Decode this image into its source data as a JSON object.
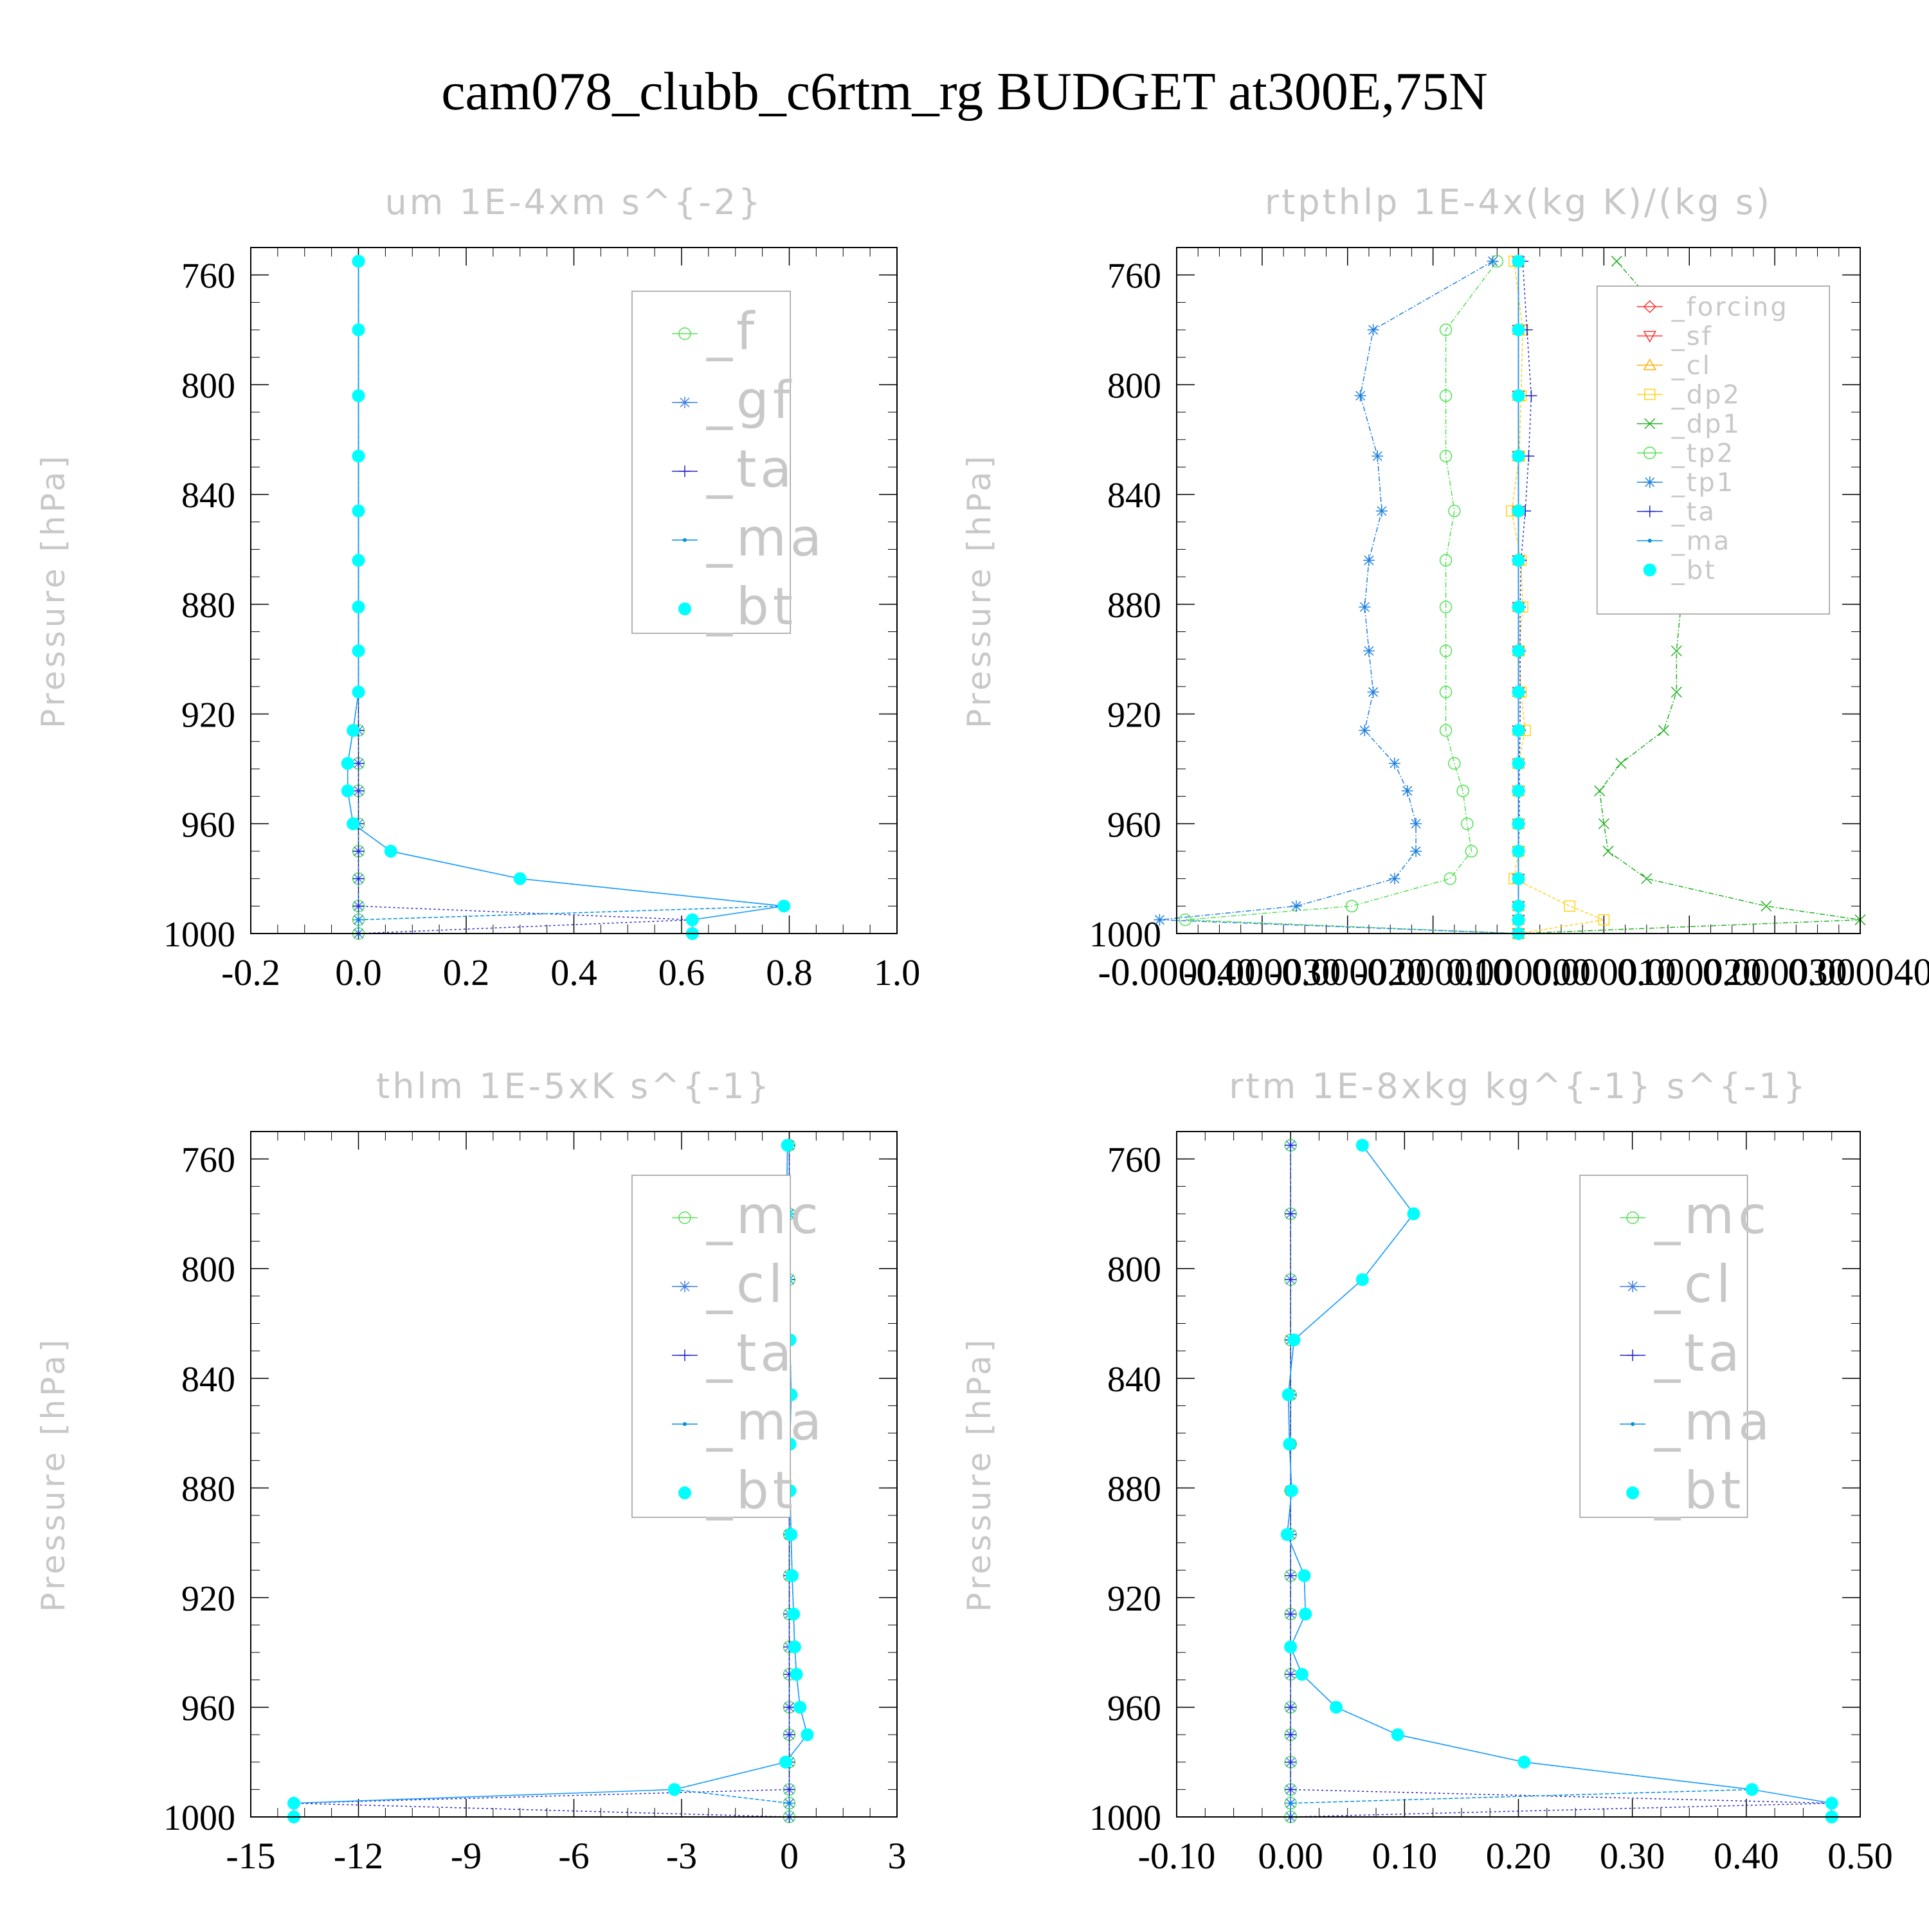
{
  "figure": {
    "title": "cam078_clubb_c6rtm_rg  BUDGET at300E,75N"
  },
  "colors": {
    "axis": "#000000",
    "faint_text": "#c8c8c8",
    "legend_border": "#9a9a9a",
    "bt": "#00ffff",
    "bt_line": "#1a9cff",
    "forcing": "#ff3030",
    "sf": "#ff3030",
    "cl_rtp": "#ffb000",
    "dp2": "#ffd21a",
    "dp1": "#20b020",
    "tp2": "#50e050",
    "tp1": "#2080e0",
    "ta": "#2020c8",
    "ma": "#0090e0",
    "f": "#50e050",
    "gf": "#4080e0",
    "mc": "#50e050",
    "cl": "#4080e0"
  },
  "chart_data": [
    {
      "id": "um",
      "type": "line",
      "title": "um   1E-4xm s^{-2}",
      "ylabel": "Pressure [hPa]",
      "xlabel": "",
      "xlim": [
        -0.2,
        1.0
      ],
      "ylim": [
        1000,
        750
      ],
      "xticks": [
        "-0.2",
        "0.0",
        "0.2",
        "0.4",
        "0.6",
        "0.8",
        "1.0"
      ],
      "xtick_values": [
        -0.2,
        0.0,
        0.2,
        0.4,
        0.6,
        0.8,
        1.0
      ],
      "yticks": [
        "760",
        "800",
        "840",
        "880",
        "920",
        "960",
        "1000"
      ],
      "legend_position": "top-right",
      "levels": [
        755,
        780,
        804,
        826,
        846,
        864,
        881,
        897,
        912,
        926,
        938,
        948,
        960,
        970,
        980,
        990,
        995,
        1000
      ],
      "series": [
        {
          "name": "_f",
          "color_key": "f",
          "marker": "circle",
          "dash": "6 4",
          "values": [
            0,
            0,
            0,
            0,
            0,
            0,
            0,
            0,
            0,
            0,
            0,
            0,
            0,
            0,
            0,
            0,
            0,
            0
          ]
        },
        {
          "name": "_gf",
          "color_key": "gf",
          "marker": "asterisk",
          "dash": "6 4",
          "values": [
            0,
            0,
            0,
            0,
            0,
            0,
            0,
            0,
            0,
            0,
            0,
            0,
            0,
            0,
            0,
            0,
            0,
            0
          ]
        },
        {
          "name": "_ta",
          "color_key": "ta",
          "marker": "plus",
          "dash": "3 4",
          "values": [
            0,
            0,
            0,
            0,
            0,
            0,
            0,
            0,
            0,
            0,
            0,
            0,
            0,
            0,
            0,
            0,
            0.62,
            0.0
          ]
        },
        {
          "name": "_ma",
          "color_key": "ma",
          "marker": "dot",
          "dash": "6 3",
          "values": [
            0,
            0,
            0,
            0,
            0,
            0,
            0,
            0,
            0,
            -0.01,
            -0.02,
            -0.02,
            -0.01,
            0.06,
            0.3,
            0.79,
            0.0,
            0.0
          ]
        },
        {
          "name": "_bt",
          "color_key": "bt",
          "marker": "filled",
          "dash": "",
          "values": [
            0,
            0,
            0,
            0,
            0,
            0,
            0,
            0,
            0,
            -0.01,
            -0.02,
            -0.02,
            -0.01,
            0.06,
            0.3,
            0.79,
            0.62,
            0.62
          ]
        }
      ]
    },
    {
      "id": "rtpthlp",
      "type": "line",
      "title": "rtpthlp   1E-4x(kg K)/(kg s)",
      "ylabel": "Pressure [hPa]",
      "xlabel": "",
      "xlim": [
        -4e-05,
        4e-05
      ],
      "ylim": [
        1000,
        750
      ],
      "xticks": [
        "-0.000040",
        "-0.000030",
        "-0.000020",
        "-0.000010",
        "0.000000",
        "0.000010",
        "0.000020",
        "0.000030",
        "0.000040"
      ],
      "xtick_values": [
        -4e-05,
        -3e-05,
        -2e-05,
        -1e-05,
        0,
        1e-05,
        2e-05,
        3e-05,
        4e-05
      ],
      "yticks": [
        "760",
        "800",
        "840",
        "880",
        "920",
        "960",
        "1000"
      ],
      "legend_position": "top-right",
      "levels": [
        755,
        780,
        804,
        826,
        846,
        864,
        881,
        897,
        912,
        926,
        938,
        948,
        960,
        970,
        980,
        990,
        995,
        1000
      ],
      "series": [
        {
          "name": "_forcing",
          "color_key": "forcing",
          "marker": "diamond",
          "dash": "5 3",
          "values": [
            0,
            0,
            0,
            0,
            0,
            0,
            0,
            0,
            0,
            0,
            0,
            0,
            0,
            0,
            0,
            0,
            0,
            0
          ]
        },
        {
          "name": "_sf",
          "color_key": "sf",
          "marker": "triangle-down",
          "dash": "5 3",
          "values": [
            0,
            0,
            0,
            0,
            0,
            0,
            0,
            0,
            0,
            0,
            0,
            0,
            0,
            0,
            0,
            0,
            0,
            0
          ]
        },
        {
          "name": "_cl",
          "color_key": "cl_rtp",
          "marker": "triangle-up",
          "dash": "5 3",
          "values": [
            0,
            0,
            0,
            0,
            0,
            0,
            0,
            0,
            0,
            0,
            0,
            0,
            0,
            0,
            0,
            0,
            0,
            0
          ]
        },
        {
          "name": "_dp2",
          "color_key": "dp2",
          "marker": "square",
          "dash": "5 3",
          "values": [
            -5e-07,
            5e-07,
            3e-07,
            1e-07,
            -8e-07,
            3e-07,
            5e-07,
            1e-07,
            3e-07,
            8e-07,
            0,
            0,
            0,
            0,
            -5e-07,
            6e-06,
            1e-05,
            0
          ]
        },
        {
          "name": "_dp1",
          "color_key": "dp1",
          "marker": "cross",
          "dash": "8 3 2 3",
          "values": [
            1.15e-05,
            1.85e-05,
            1.9e-05,
            1.65e-05,
            1.7e-05,
            1.9e-05,
            1.9e-05,
            1.85e-05,
            1.85e-05,
            1.7e-05,
            1.2e-05,
            9.5e-06,
            1e-05,
            1.05e-05,
            1.5e-05,
            2.9e-05,
            4e-05,
            0
          ]
        },
        {
          "name": "_tp2",
          "color_key": "tp2",
          "marker": "circle",
          "dash": "8 3 2 3",
          "values": [
            -2.5e-06,
            -8.5e-06,
            -8.5e-06,
            -8.5e-06,
            -7.5e-06,
            -8.5e-06,
            -8.5e-06,
            -8.5e-06,
            -8.5e-06,
            -8.5e-06,
            -7.5e-06,
            -6.5e-06,
            -6e-06,
            -5.5e-06,
            -8e-06,
            -1.95e-05,
            -3.9e-05,
            0
          ]
        },
        {
          "name": "_tp1",
          "color_key": "tp1",
          "marker": "asterisk",
          "dash": "8 3 2 3",
          "values": [
            -3e-06,
            -1.7e-05,
            -1.85e-05,
            -1.65e-05,
            -1.6e-05,
            -1.75e-05,
            -1.8e-05,
            -1.75e-05,
            -1.7e-05,
            -1.8e-05,
            -1.45e-05,
            -1.3e-05,
            -1.2e-05,
            -1.2e-05,
            -1.45e-05,
            -2.6e-05,
            -4.2e-05,
            0
          ]
        },
        {
          "name": "_ta",
          "color_key": "ta",
          "marker": "plus",
          "dash": "3 4",
          "values": [
            5e-07,
            1e-06,
            1.5e-06,
            1.2e-06,
            8e-07,
            3e-07,
            2e-07,
            2e-07,
            2e-07,
            2e-07,
            1e-07,
            1e-07,
            1e-07,
            0,
            0,
            0,
            0,
            0
          ]
        },
        {
          "name": "_ma",
          "color_key": "ma",
          "marker": "dot",
          "dash": "6 3",
          "values": [
            0,
            0,
            0,
            0,
            0,
            0,
            0,
            0,
            0,
            0,
            0,
            0,
            0,
            0,
            0,
            0,
            0,
            0
          ]
        },
        {
          "name": "_bt",
          "color_key": "bt",
          "marker": "filled",
          "dash": "",
          "values": [
            0,
            0,
            0,
            0,
            0,
            0,
            0,
            0,
            0,
            0,
            0,
            0,
            0,
            0,
            0,
            0,
            0,
            0
          ]
        }
      ]
    },
    {
      "id": "thlm",
      "type": "line",
      "title": "thlm   1E-5xK s^{-1}",
      "ylabel": "Pressure [hPa]",
      "xlabel": "",
      "xlim": [
        -15,
        3
      ],
      "ylim": [
        1000,
        750
      ],
      "xticks": [
        "-15",
        "-12",
        "-9",
        "-6",
        "-3",
        "0",
        "3"
      ],
      "xtick_values": [
        -15,
        -12,
        -9,
        -6,
        -3,
        0,
        3
      ],
      "yticks": [
        "760",
        "800",
        "840",
        "880",
        "920",
        "960",
        "1000"
      ],
      "legend_position": "top-right",
      "levels": [
        755,
        780,
        804,
        826,
        846,
        864,
        881,
        897,
        912,
        926,
        938,
        948,
        960,
        970,
        980,
        990,
        995,
        1000
      ],
      "series": [
        {
          "name": "_mc",
          "color_key": "mc",
          "marker": "circle",
          "dash": "6 4",
          "values": [
            0,
            0,
            0,
            0,
            0,
            0,
            0,
            0,
            0,
            0,
            0,
            0,
            0,
            0,
            0,
            0,
            0,
            0
          ]
        },
        {
          "name": "_cl",
          "color_key": "cl",
          "marker": "asterisk",
          "dash": "6 4",
          "values": [
            0,
            0,
            0,
            0,
            0,
            0,
            0,
            0,
            0,
            0,
            0,
            0,
            0,
            0,
            0,
            0,
            0,
            0
          ]
        },
        {
          "name": "_ta",
          "color_key": "ta",
          "marker": "plus",
          "dash": "3 4",
          "values": [
            0,
            0,
            0,
            0,
            0,
            0,
            0,
            0,
            0,
            0,
            0,
            0,
            0,
            0,
            0,
            0,
            -13.8,
            0.0
          ]
        },
        {
          "name": "_ma",
          "color_key": "ma",
          "marker": "dot",
          "dash": "6 3",
          "values": [
            -0.05,
            -0.08,
            -0.1,
            0.02,
            0.05,
            0.02,
            0.02,
            0.05,
            0.08,
            0.12,
            0.15,
            0.2,
            0.3,
            0.5,
            -0.1,
            -3.2,
            0,
            0
          ]
        },
        {
          "name": "_bt",
          "color_key": "bt",
          "marker": "filled",
          "dash": "",
          "values": [
            -0.05,
            -0.08,
            -0.1,
            0.02,
            0.05,
            0.02,
            0.02,
            0.05,
            0.08,
            0.12,
            0.15,
            0.2,
            0.3,
            0.5,
            -0.1,
            -3.2,
            -13.8,
            -13.8
          ]
        }
      ]
    },
    {
      "id": "rtm",
      "type": "line",
      "title": "rtm   1E-8xkg kg^{-1} s^{-1}",
      "ylabel": "Pressure [hPa]",
      "xlabel": "",
      "xlim": [
        -0.1,
        0.5
      ],
      "ylim": [
        1000,
        750
      ],
      "xticks": [
        "-0.10",
        "0.00",
        "0.10",
        "0.20",
        "0.30",
        "0.40",
        "0.50"
      ],
      "xtick_values": [
        -0.1,
        0.0,
        0.1,
        0.2,
        0.3,
        0.4,
        0.5
      ],
      "yticks": [
        "760",
        "800",
        "840",
        "880",
        "920",
        "960",
        "1000"
      ],
      "legend_position": "top-right",
      "levels": [
        755,
        780,
        804,
        826,
        846,
        864,
        881,
        897,
        912,
        926,
        938,
        948,
        960,
        970,
        980,
        990,
        995,
        1000
      ],
      "series": [
        {
          "name": "_mc",
          "color_key": "mc",
          "marker": "circle",
          "dash": "6 4",
          "values": [
            0,
            0,
            0,
            0,
            0,
            0,
            0,
            0,
            0,
            0,
            0,
            0,
            0,
            0,
            0,
            0,
            0,
            0
          ]
        },
        {
          "name": "_cl",
          "color_key": "cl",
          "marker": "asterisk",
          "dash": "6 4",
          "values": [
            0,
            0,
            0,
            0,
            0,
            0,
            0,
            0,
            0,
            0,
            0,
            0,
            0,
            0,
            0,
            0,
            0,
            0
          ]
        },
        {
          "name": "_ta",
          "color_key": "ta",
          "marker": "plus",
          "dash": "3 4",
          "values": [
            0,
            0,
            0,
            0,
            0,
            0,
            0,
            0,
            0,
            0,
            0,
            0,
            0,
            0,
            0,
            0,
            0.475,
            0.0
          ]
        },
        {
          "name": "_ma",
          "color_key": "ma",
          "marker": "dot",
          "dash": "6 3",
          "values": [
            0.063,
            0.108,
            0.063,
            0.003,
            -0.002,
            -0.001,
            0.001,
            -0.003,
            0.012,
            0.013,
            0.0,
            0.01,
            0.04,
            0.094,
            0.205,
            0.405,
            0,
            0
          ]
        },
        {
          "name": "_bt",
          "color_key": "bt",
          "marker": "filled",
          "dash": "",
          "values": [
            0.063,
            0.108,
            0.063,
            0.003,
            -0.002,
            -0.001,
            0.001,
            -0.003,
            0.012,
            0.013,
            0.0,
            0.01,
            0.04,
            0.094,
            0.205,
            0.405,
            0.475,
            0.475
          ]
        }
      ]
    }
  ]
}
